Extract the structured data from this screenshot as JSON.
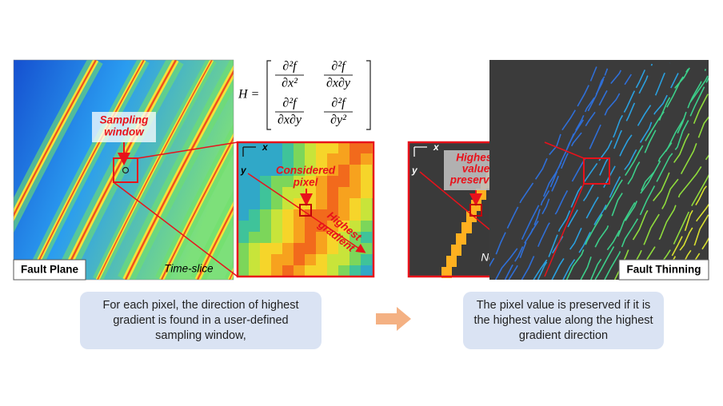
{
  "left_panel": {
    "label": "Fault Plane",
    "annotation": [
      "Sampling",
      "window"
    ],
    "slice_label": "Time-slice"
  },
  "formula": {
    "lhs": "H =",
    "cells": [
      {
        "num": "∂²f",
        "den": "∂x²"
      },
      {
        "num": "∂²f",
        "den": "∂x∂y"
      },
      {
        "num": "∂²f",
        "den": "∂x∂y"
      },
      {
        "num": "∂²f",
        "den": "∂y²"
      }
    ]
  },
  "zoom_left": {
    "axis_x": "x",
    "axis_y": "y",
    "pixel_label": [
      "Considered",
      "pixel"
    ],
    "arrow_label": [
      "Highest",
      "gradient"
    ]
  },
  "zoom_right": {
    "axis_x": "x",
    "axis_y": "y",
    "pixel_label": [
      "Highest",
      "value",
      "preserved"
    ],
    "empty_label": "No data"
  },
  "right_panel": {
    "label": "Fault Thinning"
  },
  "captions": [
    "For each pixel, the direction of highest gradient is found in a user-defined sampling window,",
    "The pixel value is preserved if it is the highest value along the highest gradient direction"
  ]
}
